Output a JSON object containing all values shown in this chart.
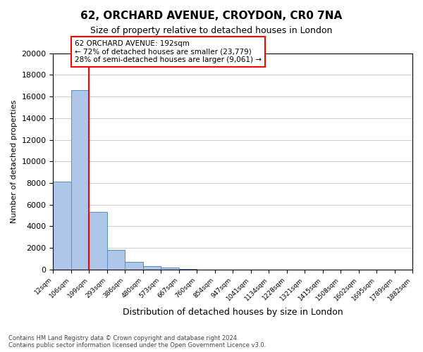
{
  "title": "62, ORCHARD AVENUE, CROYDON, CR0 7NA",
  "subtitle": "Size of property relative to detached houses in London",
  "xlabel": "Distribution of detached houses by size in London",
  "ylabel": "Number of detached properties",
  "bin_labels": [
    "12sqm",
    "106sqm",
    "199sqm",
    "293sqm",
    "386sqm",
    "480sqm",
    "573sqm",
    "667sqm",
    "760sqm",
    "854sqm",
    "947sqm",
    "1041sqm",
    "1134sqm",
    "1228sqm",
    "1321sqm",
    "1415sqm",
    "1508sqm",
    "1602sqm",
    "1695sqm",
    "1789sqm",
    "1882sqm"
  ],
  "bar_heights": [
    8100,
    16600,
    5300,
    1800,
    700,
    300,
    150,
    80,
    0,
    0,
    0,
    0,
    0,
    0,
    0,
    0,
    0,
    0,
    0,
    0
  ],
  "bar_color": "#aec6e8",
  "bar_edge_color": "#5590c8",
  "ylim": [
    0,
    20000
  ],
  "yticks": [
    0,
    2000,
    4000,
    6000,
    8000,
    10000,
    12000,
    14000,
    16000,
    18000,
    20000
  ],
  "property_value": 192,
  "property_bin_edge": 199,
  "red_line_color": "#ff0000",
  "annotation_title": "62 ORCHARD AVENUE: 192sqm",
  "annotation_line1": "← 72% of detached houses are smaller (23,779)",
  "annotation_line2": "28% of semi-detached houses are larger (9,061) →",
  "annotation_box_color": "#ffffff",
  "annotation_box_edge": "#ff0000",
  "footer_line1": "Contains HM Land Registry data © Crown copyright and database right 2024.",
  "footer_line2": "Contains public sector information licensed under the Open Government Licence v3.0.",
  "background_color": "#ffffff",
  "grid_color": "#cccccc"
}
